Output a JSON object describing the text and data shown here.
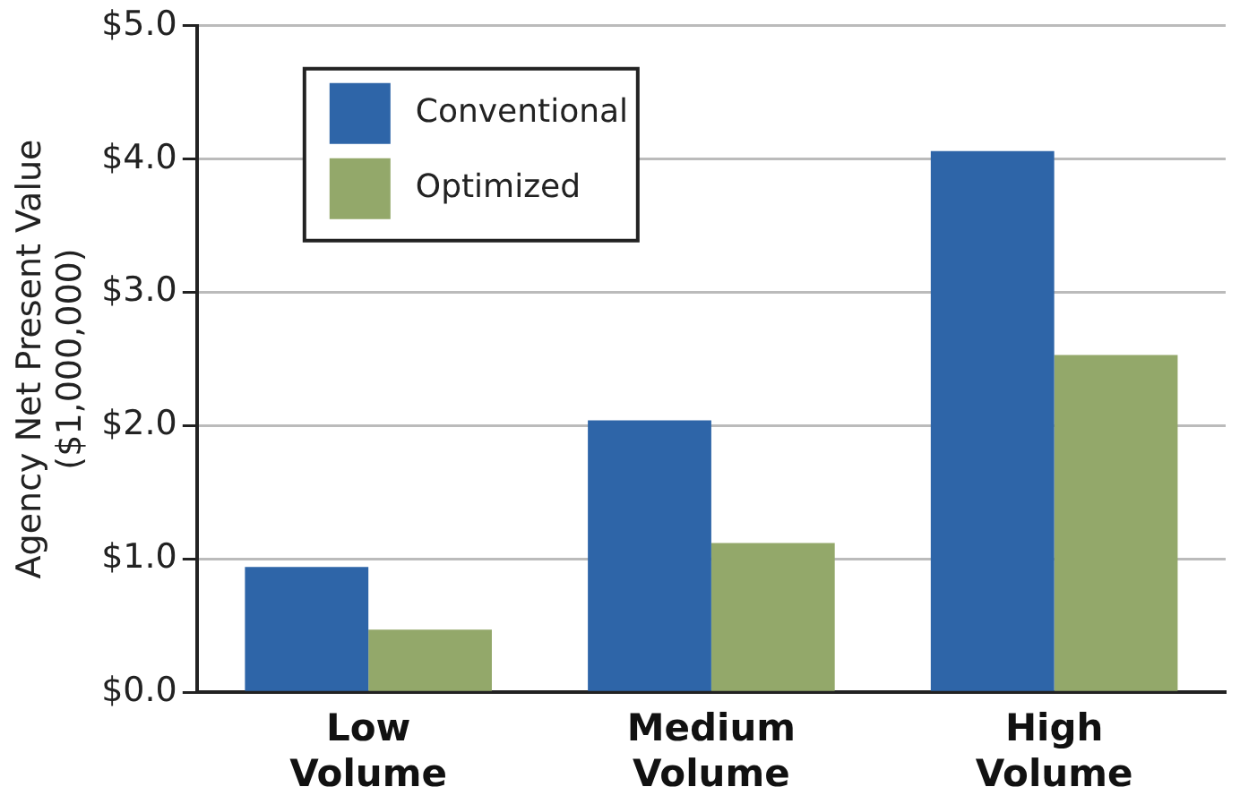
{
  "chart_data": {
    "type": "bar",
    "ylabel": "Agency Net Present Value ($1,000,000)",
    "categories": [
      "Low Volume",
      "Medium Volume",
      "High Volume"
    ],
    "series": [
      {
        "name": "Conventional",
        "color": "#2e65a8",
        "values": [
          0.94,
          2.04,
          4.06
        ]
      },
      {
        "name": "Optimized",
        "color": "#93a86a",
        "values": [
          0.47,
          1.12,
          2.53
        ]
      }
    ],
    "ylim": [
      0,
      5
    ],
    "yticks": [
      {
        "value": 0,
        "label": "$0.0"
      },
      {
        "value": 1,
        "label": "$1.0"
      },
      {
        "value": 2,
        "label": "$2.0"
      },
      {
        "value": 3,
        "label": "$3.0"
      },
      {
        "value": 4,
        "label": "$4.0"
      },
      {
        "value": 5,
        "label": "$5.0"
      }
    ],
    "grid": "y",
    "legend": "top left"
  }
}
